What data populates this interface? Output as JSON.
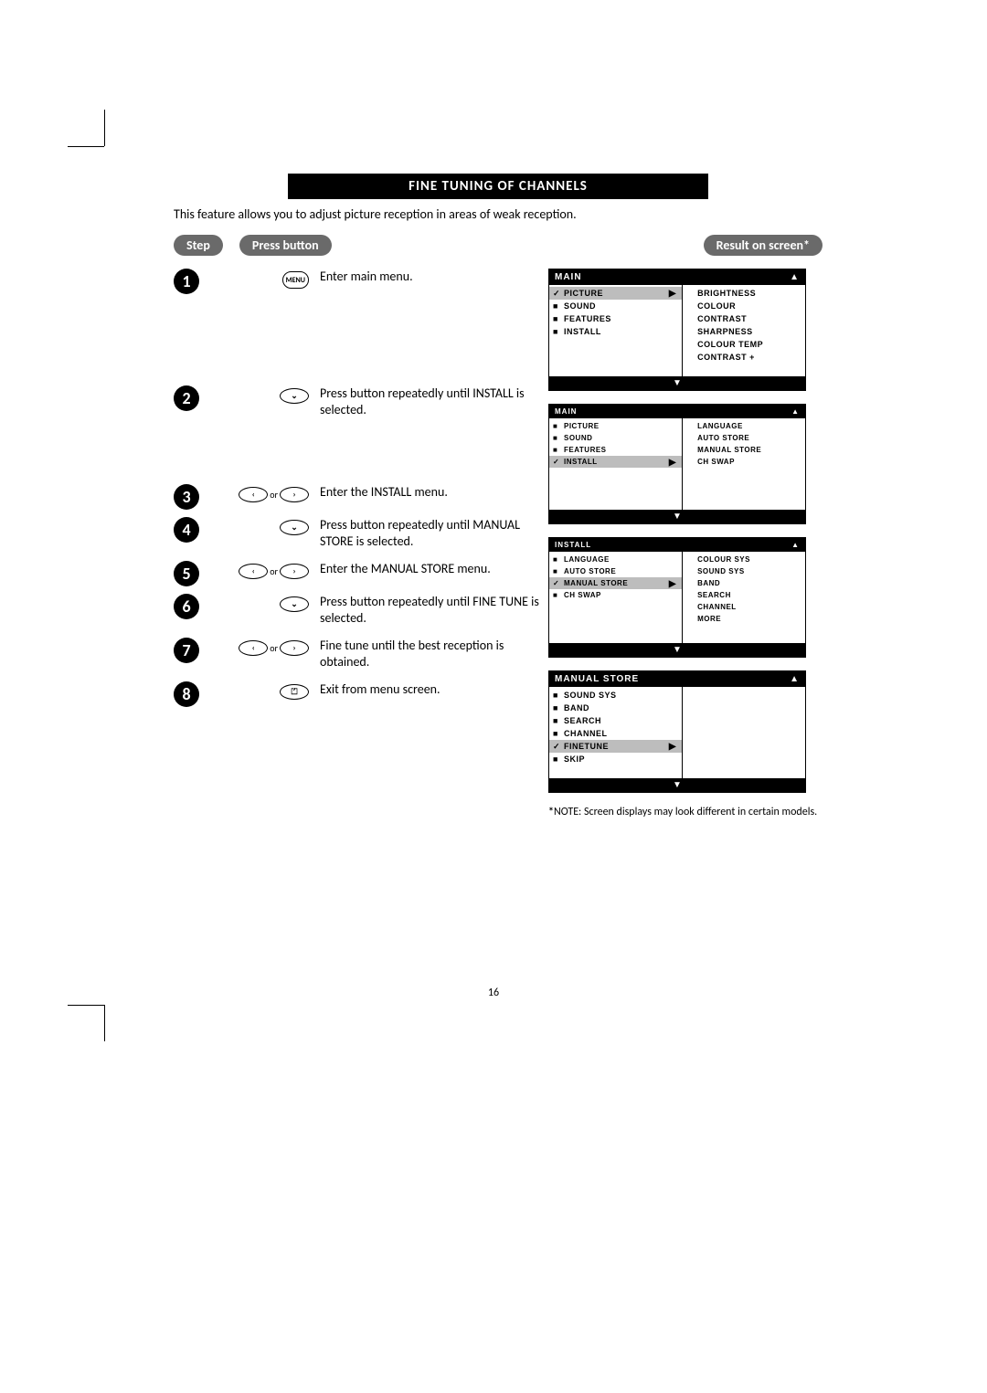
{
  "title": "FINE TUNING OF CHANNELS",
  "intro": "This feature allows you to adjust picture reception in areas of weak reception.",
  "hdr": {
    "step": "Step",
    "press": "Press button",
    "result": "Result on screen*"
  },
  "steps": [
    {
      "n": "1",
      "btn": "menu",
      "text": "Enter main menu."
    },
    {
      "n": "2",
      "btn": "down",
      "text": "Press button repeatedly until INSTALL is selected."
    },
    {
      "n": "3",
      "btn": "lr",
      "text": "Enter the INSTALL menu."
    },
    {
      "n": "4",
      "btn": "down",
      "text": "Press button repeatedly until MANUAL STORE is selected."
    },
    {
      "n": "5",
      "btn": "lr",
      "text": "Enter the MANUAL STORE menu."
    },
    {
      "n": "6",
      "btn": "down",
      "text": "Press button repeatedly until FINE TUNE is selected."
    },
    {
      "n": "7",
      "btn": "lr",
      "text": "Fine tune until the best reception is obtained."
    },
    {
      "n": "8",
      "btn": "exit",
      "text": "Exit from menu screen."
    }
  ],
  "btnLabels": {
    "menu": "MENU",
    "down": "⌄",
    "left": "‹",
    "right": "›",
    "or": "or",
    "exit": "⏍"
  },
  "osd1": {
    "title": "MAIN",
    "left": [
      {
        "t": "PICTURE",
        "mk": "✓",
        "sel": true,
        "arr": true
      },
      {
        "t": "SOUND",
        "mk": "■"
      },
      {
        "t": "FEATURES",
        "mk": "■"
      },
      {
        "t": "INSTALL",
        "mk": "■"
      }
    ],
    "right": [
      "BRIGHTNESS",
      "COLOUR",
      "CONTRAST",
      "SHARPNESS",
      "COLOUR TEMP",
      "CONTRAST +"
    ]
  },
  "osd2": {
    "title": "MAIN",
    "left": [
      {
        "t": "PICTURE",
        "mk": "■"
      },
      {
        "t": "SOUND",
        "mk": "■"
      },
      {
        "t": "FEATURES",
        "mk": "■"
      },
      {
        "t": "INSTALL",
        "mk": "✓",
        "sel": true,
        "arr": true
      }
    ],
    "right": [
      "LANGUAGE",
      "AUTO STORE",
      "MANUAL STORE",
      "CH SWAP"
    ]
  },
  "osd3": {
    "title": "INSTALL",
    "left": [
      {
        "t": "LANGUAGE",
        "mk": "■"
      },
      {
        "t": "AUTO STORE",
        "mk": "■"
      },
      {
        "t": "MANUAL STORE",
        "mk": "✓",
        "sel": true,
        "arr": true
      },
      {
        "t": "CH SWAP",
        "mk": "■"
      }
    ],
    "right": [
      "COLOUR SYS",
      "SOUND SYS",
      "BAND",
      "SEARCH",
      "CHANNEL",
      "MORE"
    ]
  },
  "osd4": {
    "title": "MANUAL STORE",
    "left": [
      {
        "t": "SOUND SYS",
        "mk": "■"
      },
      {
        "t": "BAND",
        "mk": "■"
      },
      {
        "t": "SEARCH",
        "mk": "■"
      },
      {
        "t": "CHANNEL",
        "mk": "■"
      },
      {
        "t": "FINETUNE",
        "mk": "✓",
        "sel": true,
        "arr": true
      },
      {
        "t": "SKIP",
        "mk": "■"
      }
    ],
    "right": []
  },
  "note": "NOTE: Screen displays may look different in certain models.",
  "noteAst": "*",
  "pageNum": "16",
  "spacers": {
    "s1": 120,
    "s2": 100,
    "s3": 8,
    "s4": 40,
    "s5": 8,
    "s6": 40,
    "s7": 40,
    "s8": 60
  },
  "colors": {
    "black": "#000000",
    "gray": "#6a6a6a",
    "selBg": "#bdbdbd",
    "white": "#ffffff"
  }
}
